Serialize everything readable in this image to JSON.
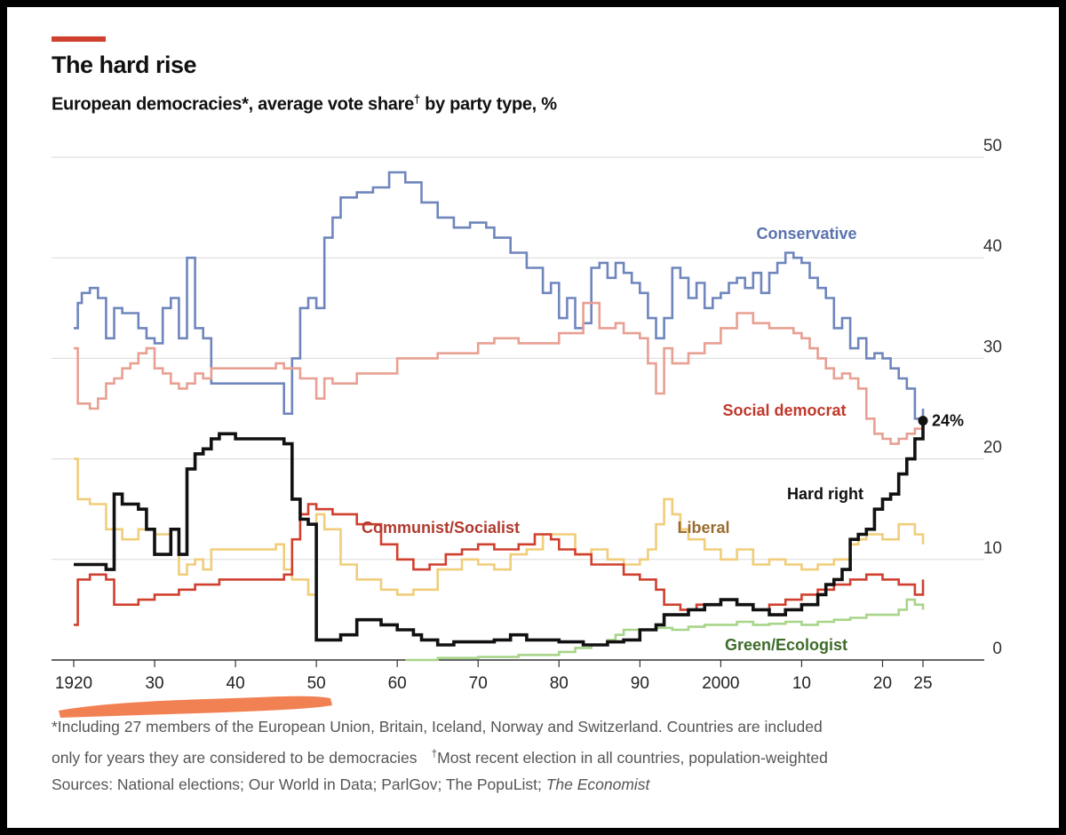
{
  "header": {
    "title": "The hard rise",
    "subtitle": "European democracies*, average vote share",
    "subtitle_mark": "†",
    "subtitle_tail": " by party type, %"
  },
  "colors": {
    "accent": "#d0402f",
    "background": "#ffffff",
    "frame": "#000000",
    "gridline": "#d9d9d9",
    "marker_overlay": "#f07a4a"
  },
  "footnotes": {
    "line1": "*Including 27 members of the European Union, Britain, Iceland, Norway and Switzerland. Countries are included",
    "line2a": "only for years they are considered to be democracies",
    "line2_mark": "†",
    "line2b": "Most recent election in all countries, population-weighted",
    "line3a": "Sources: National elections; Our World in Data; ParlGov; The PopuList; ",
    "line3b": "The Economist"
  },
  "chart_data": {
    "type": "line",
    "step": true,
    "title": "The hard rise",
    "subtitle": "European democracies*, average vote share† by party type, %",
    "xlim": [
      1918,
      2030
    ],
    "ylim": [
      0,
      50
    ],
    "y_axis_side": "right",
    "yticks": [
      0,
      10,
      20,
      30,
      40,
      50
    ],
    "ytick_labels": [
      "0",
      "10",
      "20",
      "30",
      "40",
      "50"
    ],
    "xticks": [
      1920,
      1930,
      1940,
      1950,
      1960,
      1970,
      1980,
      1990,
      2000,
      2010,
      2020,
      2025
    ],
    "xtick_labels": [
      "1920",
      "30",
      "40",
      "50",
      "60",
      "70",
      "80",
      "90",
      "2000",
      "10",
      "20",
      "25"
    ],
    "grid": true,
    "legend": "inline labels",
    "annotations": [
      {
        "text": "24%",
        "x": 2025,
        "y": 23.8,
        "series": "Hard right"
      }
    ],
    "series": [
      {
        "name": "Conservative",
        "color": "#6f86bd",
        "x": [
          1920,
          1920.5,
          1921,
          1922,
          1923,
          1924,
          1925,
          1926,
          1928,
          1929,
          1930,
          1931,
          1932,
          1933,
          1934,
          1935,
          1936,
          1937,
          1945,
          1946,
          1947,
          1948,
          1949,
          1950,
          1951,
          1952,
          1953,
          1955,
          1957,
          1959,
          1961,
          1963,
          1965,
          1967,
          1969,
          1971,
          1972,
          1974,
          1976,
          1978,
          1979,
          1980,
          1981,
          1982,
          1983,
          1984,
          1985,
          1986,
          1987,
          1988,
          1989,
          1990,
          1991,
          1992,
          1993,
          1994,
          1995,
          1996,
          1997,
          1998,
          1999,
          2000,
          2001,
          2002,
          2003,
          2004,
          2005,
          2006,
          2007,
          2008,
          2009,
          2010,
          2011,
          2012,
          2013,
          2014,
          2015,
          2016,
          2017,
          2018,
          2019,
          2020,
          2021,
          2022,
          2023,
          2024,
          2025
        ],
        "values": [
          33,
          35.5,
          36.5,
          37,
          36,
          32,
          35,
          34.5,
          33,
          32,
          31.5,
          35,
          36,
          32,
          40,
          33,
          32,
          27.5,
          27.5,
          24.5,
          30,
          35,
          36,
          35,
          42,
          44,
          46,
          46.5,
          47,
          48.5,
          47.5,
          45.5,
          44,
          43,
          43.5,
          43,
          42,
          40.5,
          39,
          36.5,
          37.5,
          34,
          36,
          33,
          33.5,
          39,
          39.5,
          38,
          39.5,
          38.5,
          37.5,
          36.5,
          34,
          32,
          34,
          39,
          38,
          36,
          37.5,
          35,
          36,
          36.5,
          37.5,
          38,
          37,
          38.5,
          36.5,
          38.5,
          39.5,
          40.5,
          40,
          39.5,
          38,
          37,
          36,
          33,
          34,
          31,
          32,
          30,
          30.5,
          30,
          29,
          28,
          27,
          24,
          25
        ]
      },
      {
        "name": "Social democrat",
        "color": "#e8a092",
        "x": [
          1920,
          1920.5,
          1922,
          1923,
          1924,
          1925,
          1926,
          1927,
          1928,
          1929,
          1930,
          1931,
          1932,
          1933,
          1934,
          1935,
          1936,
          1937,
          1939,
          1945,
          1946,
          1948,
          1950,
          1951,
          1952,
          1955,
          1960,
          1965,
          1970,
          1972,
          1975,
          1980,
          1983,
          1985,
          1987,
          1988,
          1990,
          1991,
          1992,
          1993,
          1994,
          1996,
          1998,
          2000,
          2002,
          2004,
          2006,
          2008,
          2009,
          2010,
          2011,
          2012,
          2013,
          2014,
          2015,
          2016,
          2017,
          2018,
          2019,
          2020,
          2021,
          2022,
          2023,
          2024,
          2025
        ],
        "values": [
          31,
          25.5,
          25,
          26,
          27.5,
          28,
          29,
          29.5,
          30.5,
          31,
          29,
          28.5,
          27.5,
          27,
          27.5,
          28.5,
          28,
          29,
          29,
          29.5,
          29,
          28,
          26,
          28,
          27.5,
          28.5,
          30,
          30.5,
          31.5,
          32,
          31.5,
          32.5,
          35.5,
          33,
          33.5,
          32.5,
          32,
          29.5,
          26.5,
          31,
          29.5,
          30.5,
          31.5,
          33,
          34.5,
          33.5,
          33,
          33,
          32.5,
          32,
          31,
          30,
          29,
          28,
          28.5,
          28,
          27,
          24,
          22.5,
          22,
          21.5,
          22,
          22.5,
          23,
          23.5
        ]
      },
      {
        "name": "Liberal",
        "color": "#f0cd7a",
        "x": [
          1920,
          1920.5,
          1922,
          1924,
          1926,
          1928,
          1930,
          1932,
          1933,
          1934,
          1935,
          1936,
          1937,
          1940,
          1945,
          1946,
          1947,
          1949,
          1950,
          1951,
          1953,
          1955,
          1958,
          1960,
          1962,
          1965,
          1968,
          1970,
          1972,
          1974,
          1976,
          1978,
          1980,
          1982,
          1984,
          1986,
          1988,
          1990,
          1991,
          1992,
          1993,
          1994,
          1995,
          1996,
          1998,
          2000,
          2002,
          2004,
          2006,
          2008,
          2010,
          2012,
          2014,
          2016,
          2017,
          2018,
          2020,
          2022,
          2024,
          2025
        ],
        "values": [
          20,
          16,
          15.5,
          13,
          12,
          13,
          12.5,
          13,
          8.5,
          9.5,
          10,
          9,
          11,
          11,
          11.5,
          9,
          8,
          6.5,
          14.5,
          13,
          9.5,
          8,
          7,
          6.5,
          7,
          9,
          10,
          9.5,
          9,
          10.5,
          11,
          12.5,
          12.5,
          10.5,
          11,
          10,
          9.5,
          10,
          11,
          13.5,
          16,
          14.5,
          13,
          12,
          11,
          10,
          11,
          9.5,
          10,
          9.5,
          9,
          9.5,
          10,
          11.5,
          12,
          12.5,
          12,
          13.5,
          12.5,
          11.5
        ]
      },
      {
        "name": "Communist/Socialist",
        "color": "#d0402f",
        "x": [
          1920,
          1920.5,
          1922,
          1924,
          1925,
          1928,
          1930,
          1933,
          1935,
          1938,
          1945,
          1946,
          1947,
          1948,
          1949,
          1950,
          1952,
          1955,
          1958,
          1960,
          1962,
          1964,
          1966,
          1968,
          1970,
          1972,
          1975,
          1977,
          1979,
          1980,
          1982,
          1984,
          1986,
          1988,
          1990,
          1992,
          1993,
          1995,
          1997,
          2000,
          2002,
          2004,
          2006,
          2008,
          2010,
          2012,
          2014,
          2016,
          2018,
          2020,
          2022,
          2024,
          2025
        ],
        "values": [
          3.5,
          8,
          8.5,
          8,
          5.5,
          6,
          6.5,
          7,
          7.5,
          8,
          8,
          8.5,
          12,
          14.5,
          15.5,
          15,
          14.5,
          13.5,
          11.5,
          10,
          9,
          9.5,
          10.5,
          11,
          11.5,
          11,
          11.5,
          12.5,
          12,
          11,
          10.5,
          9.5,
          9.5,
          8.5,
          8,
          7,
          5.5,
          5,
          5.5,
          6,
          5.5,
          5,
          5.5,
          6,
          6.5,
          7,
          7.5,
          8,
          8.5,
          8,
          7.5,
          6.5,
          8
        ]
      },
      {
        "name": "Green/Ecologist",
        "color": "#a8d58a",
        "x": [
          1961,
          1965,
          1970,
          1975,
          1980,
          1982,
          1984,
          1986,
          1987,
          1988,
          1990,
          1992,
          1994,
          1996,
          1998,
          2000,
          2002,
          2004,
          2006,
          2008,
          2010,
          2012,
          2014,
          2016,
          2018,
          2020,
          2022,
          2023,
          2024,
          2025
        ],
        "values": [
          0,
          0.2,
          0.3,
          0.5,
          0.8,
          1.2,
          1.5,
          2,
          2.5,
          3,
          3,
          3.2,
          3,
          3.3,
          3.5,
          3.5,
          3.8,
          3.5,
          3.6,
          3.8,
          3.5,
          3.8,
          4,
          4.2,
          4.5,
          4.5,
          5,
          6,
          5.5,
          5
        ]
      },
      {
        "name": "Hard right",
        "color": "#111111",
        "x": [
          1920,
          1921,
          1924,
          1925,
          1926,
          1928,
          1929,
          1930,
          1931,
          1932,
          1933,
          1934,
          1935,
          1936,
          1937,
          1938,
          1940,
          1945,
          1946,
          1947,
          1948,
          1949,
          1950,
          1951,
          1952,
          1953,
          1955,
          1957,
          1958,
          1960,
          1962,
          1963,
          1965,
          1967,
          1970,
          1972,
          1974,
          1976,
          1978,
          1980,
          1983,
          1986,
          1988,
          1990,
          1992,
          1993,
          1994,
          1996,
          1998,
          2000,
          2002,
          2004,
          2006,
          2008,
          2010,
          2012,
          2013,
          2014,
          2015,
          2016,
          2017,
          2018,
          2019,
          2020,
          2021,
          2022,
          2023,
          2024,
          2025
        ],
        "values": [
          9.5,
          9.5,
          9,
          16.5,
          15.5,
          15,
          13,
          10.5,
          10.5,
          13,
          10.5,
          19,
          20.5,
          21,
          22,
          22.5,
          22,
          22,
          21.5,
          16,
          14,
          13.5,
          2,
          2,
          2,
          2.5,
          4,
          4,
          3.5,
          3,
          2.5,
          2,
          1.5,
          1.8,
          1.8,
          2,
          2.5,
          2,
          2,
          1.8,
          1.5,
          1.8,
          2,
          3,
          3.5,
          4.5,
          4.5,
          5,
          5.5,
          6,
          5.5,
          5,
          4.5,
          5,
          5.5,
          6.5,
          7.5,
          8,
          9,
          12,
          12.5,
          13,
          15,
          16,
          16.5,
          18.5,
          20,
          22,
          23.8
        ]
      }
    ]
  }
}
